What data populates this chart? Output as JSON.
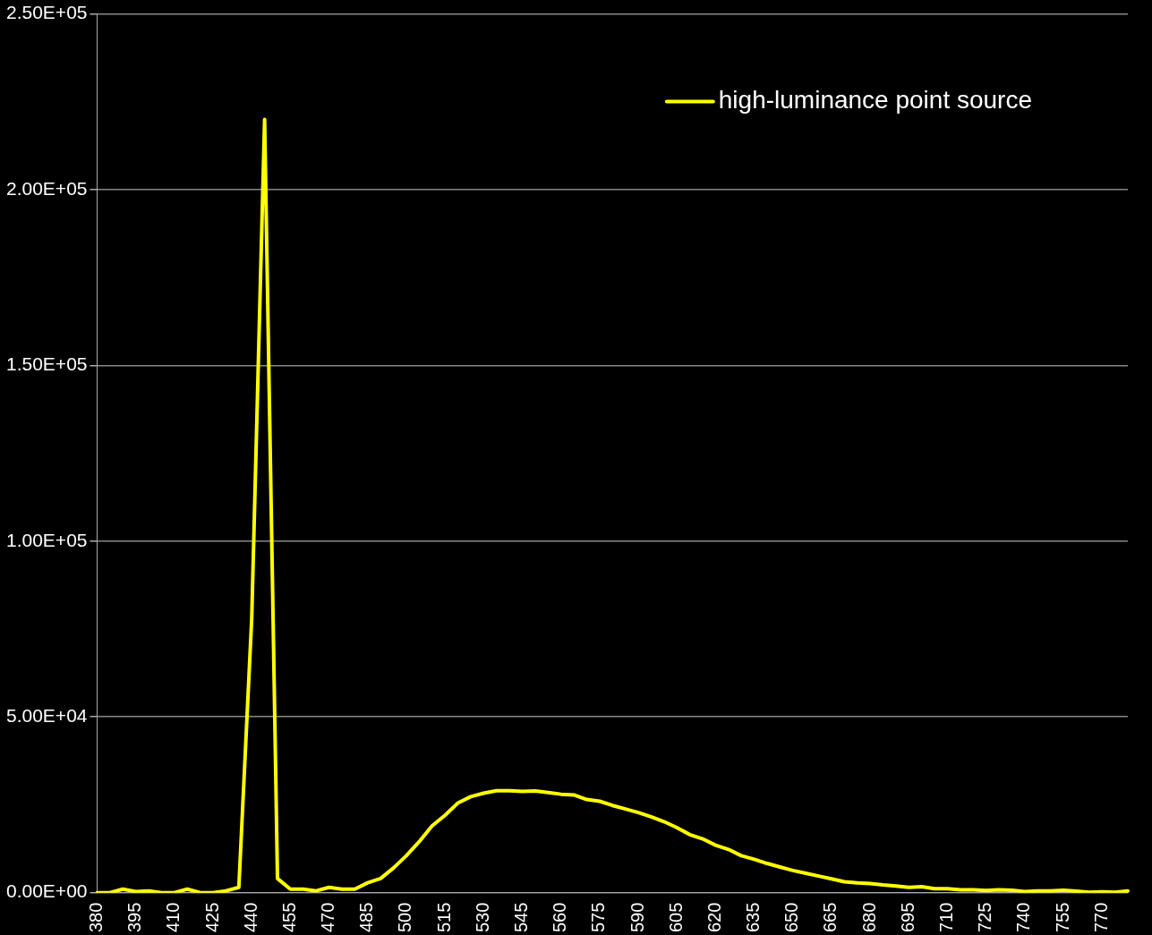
{
  "chart_data": {
    "type": "line",
    "categories": [
      "380",
      null,
      null,
      "395",
      null,
      null,
      "410",
      null,
      null,
      "425",
      null,
      null,
      "440",
      null,
      null,
      "455",
      null,
      null,
      "470",
      null,
      null,
      "485",
      null,
      null,
      "500",
      null,
      null,
      "515",
      null,
      null,
      "530",
      null,
      null,
      "545",
      null,
      null,
      "560",
      null,
      null,
      "575",
      null,
      null,
      "590",
      null,
      null,
      "605",
      null,
      null,
      "620",
      null,
      null,
      "635",
      null,
      null,
      "650",
      null,
      null,
      "665",
      null,
      null,
      "680",
      null,
      null,
      "695",
      null,
      null,
      "710",
      null,
      null,
      "725",
      null,
      null,
      "740",
      null,
      null,
      "755",
      null,
      null,
      "770",
      null,
      null
    ],
    "series": [
      {
        "name": "high-luminance point source",
        "color": "#ffff00",
        "values": [
          0,
          0,
          1000,
          300,
          500,
          0,
          0,
          1000,
          0,
          0,
          500,
          1500,
          78000,
          220000,
          4000,
          1000,
          1000,
          500,
          1500,
          1000,
          1000,
          2800,
          4000,
          7000,
          10500,
          14500,
          19000,
          22000,
          25500,
          27300,
          28300,
          29000,
          29000,
          28800,
          28900,
          28500,
          28000,
          27800,
          26500,
          26000,
          24800,
          23800,
          22800,
          21600,
          20200,
          18500,
          16500,
          15300,
          13500,
          12300,
          10500,
          9500,
          8300,
          7300,
          6300,
          5500,
          4700,
          3900,
          3100,
          2800,
          2600,
          2200,
          1900,
          1500,
          1700,
          1100,
          1100,
          800,
          800,
          600,
          800,
          700,
          300,
          500,
          500,
          700,
          400,
          100,
          200,
          100,
          500
        ]
      }
    ],
    "ylim": [
      0,
      250000
    ],
    "yticks": [
      {
        "value": 0,
        "label": "0.00E+00"
      },
      {
        "value": 50000,
        "label": "5.00E+04"
      },
      {
        "value": 100000,
        "label": "1.00E+05"
      },
      {
        "value": 150000,
        "label": "1.50E+05"
      },
      {
        "value": 200000,
        "label": "2.00E+05"
      },
      {
        "value": 250000,
        "label": "2.50E+05"
      }
    ],
    "grid": "y",
    "legend": "top right",
    "marker": "none",
    "line_style": "solid"
  }
}
